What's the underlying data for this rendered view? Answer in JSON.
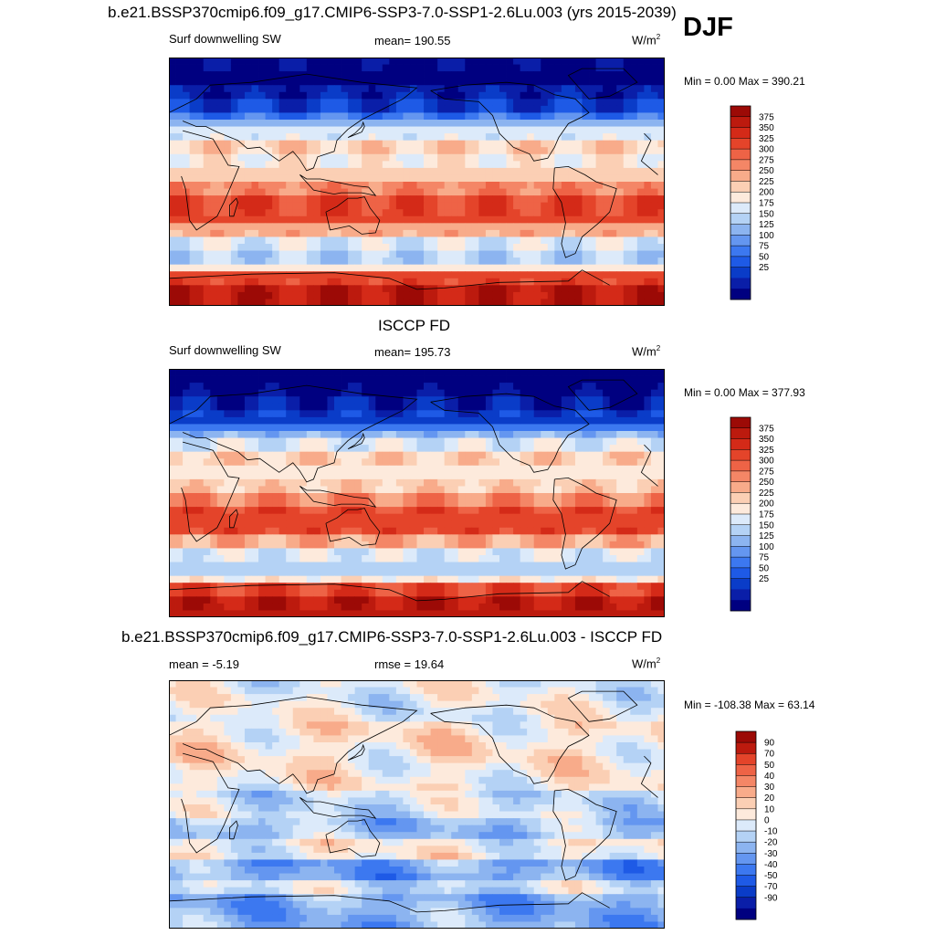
{
  "season": "DJF",
  "colors": {
    "abs_scale": [
      "#000080",
      "#0a1ea8",
      "#0a3cc8",
      "#1e5ae6",
      "#3c78f0",
      "#6496f0",
      "#8cb4f0",
      "#b4d2f5",
      "#dceafa",
      "#fdeadc",
      "#fbcfb4",
      "#f8ab8a",
      "#f48666",
      "#ee6346",
      "#e4442a",
      "#d42a18",
      "#bc1a0e",
      "#9c0a06"
    ],
    "diff_scale": [
      "#000080",
      "#0a1ea8",
      "#0a3cc8",
      "#1e5ae6",
      "#3c78f0",
      "#6496f0",
      "#8cb4f0",
      "#b4d2f5",
      "#dceafa",
      "#fdeadc",
      "#fbcfb4",
      "#f8ab8a",
      "#f48666",
      "#ee6346",
      "#e4442a",
      "#bc1a0e",
      "#9c0a06"
    ],
    "coast": "#000000"
  },
  "chart_data": [
    {
      "type": "heatmap",
      "title": "b.e21.BSSP370cmip6.f09_g17.CMIP6-SSP3-7.0-SSP1-2.6Lu.003 (yrs 2015-2039)",
      "variable": "Surf downwelling SW",
      "stat_text": "mean= 190.55",
      "units_base": "W/m",
      "units_exp": "2",
      "minmax_text": "Min =   0.00 Max = 390.21",
      "colorbar_levels": [
        "375",
        "350",
        "325",
        "300",
        "275",
        "250",
        "225",
        "200",
        "175",
        "150",
        "125",
        "100",
        "75",
        "50",
        "25"
      ],
      "min": 0.0,
      "max": 390.21,
      "mean": 190.55
    },
    {
      "type": "heatmap",
      "title": "ISCCP FD",
      "variable": "Surf downwelling SW",
      "stat_text": "mean= 195.73",
      "units_base": "W/m",
      "units_exp": "2",
      "minmax_text": "Min =   0.00 Max = 377.93",
      "colorbar_levels": [
        "375",
        "350",
        "325",
        "300",
        "275",
        "250",
        "225",
        "200",
        "175",
        "150",
        "125",
        "100",
        "75",
        "50",
        "25"
      ],
      "min": 0.0,
      "max": 377.93,
      "mean": 195.73
    },
    {
      "type": "heatmap",
      "title": "b.e21.BSSP370cmip6.f09_g17.CMIP6-SSP3-7.0-SSP1-2.6Lu.003 - ISCCP FD",
      "stat_text": "mean =  -5.19",
      "stat2_text": "rmse =  19.64",
      "units_base": "W/m",
      "units_exp": "2",
      "minmax_text": "Min = -108.38 Max =  63.14",
      "colorbar_levels": [
        "90",
        "70",
        "50",
        "40",
        "30",
        "20",
        "10",
        "0",
        "-10",
        "-20",
        "-30",
        "-40",
        "-50",
        "-70",
        "-90"
      ],
      "min": -108.38,
      "max": 63.14,
      "mean": -5.19,
      "rmse": 19.64
    }
  ]
}
